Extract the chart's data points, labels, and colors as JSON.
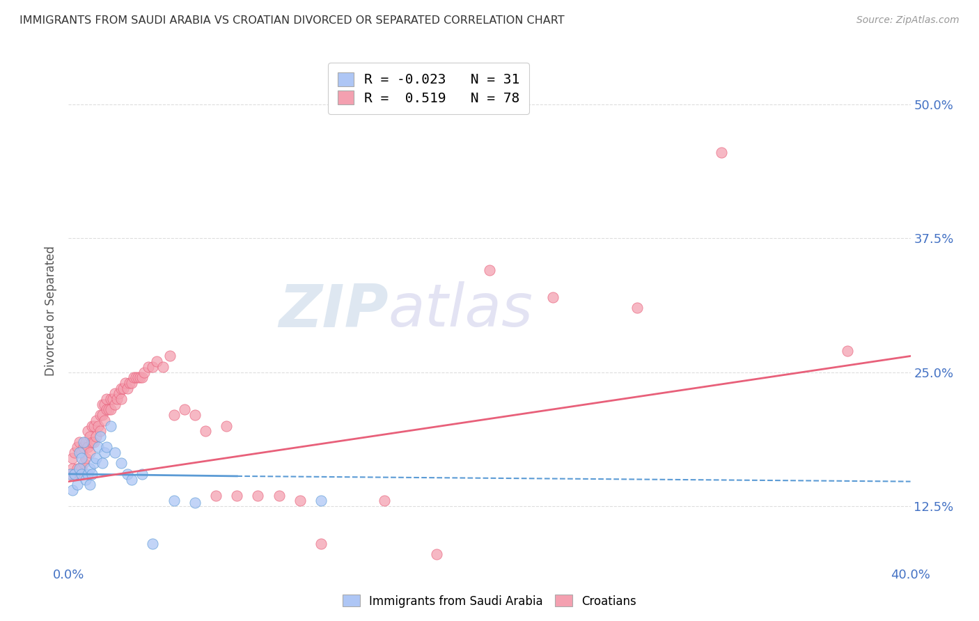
{
  "title": "IMMIGRANTS FROM SAUDI ARABIA VS CROATIAN DIVORCED OR SEPARATED CORRELATION CHART",
  "source": "Source: ZipAtlas.com",
  "ylabel_ticks": [
    0.125,
    0.25,
    0.375,
    0.5
  ],
  "ylabel_labels": [
    "12.5%",
    "25.0%",
    "37.5%",
    "50.0%"
  ],
  "xlim": [
    0.0,
    0.4
  ],
  "ylim": [
    0.07,
    0.545
  ],
  "legend1_label": "R = -0.023   N = 31",
  "legend2_label": "R =  0.519   N = 78",
  "watermark_zip": "ZIP",
  "watermark_atlas": "atlas",
  "series1_color": "#aec6f5",
  "series2_color": "#f4a0b0",
  "trend1_color": "#5b9bd5",
  "trend2_color": "#e8607a",
  "legend_series1": "Immigrants from Saudi Arabia",
  "legend_series2": "Croatians",
  "blue_scatter_x": [
    0.001,
    0.002,
    0.003,
    0.004,
    0.005,
    0.005,
    0.006,
    0.006,
    0.007,
    0.008,
    0.009,
    0.01,
    0.01,
    0.011,
    0.012,
    0.013,
    0.014,
    0.015,
    0.016,
    0.017,
    0.018,
    0.02,
    0.022,
    0.025,
    0.028,
    0.03,
    0.035,
    0.04,
    0.05,
    0.06,
    0.12
  ],
  "blue_scatter_y": [
    0.155,
    0.14,
    0.155,
    0.145,
    0.16,
    0.175,
    0.155,
    0.17,
    0.185,
    0.15,
    0.155,
    0.16,
    0.145,
    0.155,
    0.165,
    0.17,
    0.18,
    0.19,
    0.165,
    0.175,
    0.18,
    0.2,
    0.175,
    0.165,
    0.155,
    0.15,
    0.155,
    0.09,
    0.13,
    0.128,
    0.13
  ],
  "pink_scatter_x": [
    0.001,
    0.002,
    0.002,
    0.003,
    0.003,
    0.004,
    0.004,
    0.005,
    0.005,
    0.006,
    0.006,
    0.007,
    0.007,
    0.008,
    0.008,
    0.009,
    0.009,
    0.01,
    0.01,
    0.011,
    0.011,
    0.012,
    0.012,
    0.013,
    0.013,
    0.014,
    0.015,
    0.015,
    0.016,
    0.016,
    0.017,
    0.017,
    0.018,
    0.018,
    0.019,
    0.02,
    0.02,
    0.021,
    0.022,
    0.022,
    0.023,
    0.024,
    0.025,
    0.025,
    0.026,
    0.027,
    0.028,
    0.029,
    0.03,
    0.031,
    0.032,
    0.033,
    0.034,
    0.035,
    0.036,
    0.038,
    0.04,
    0.042,
    0.045,
    0.048,
    0.05,
    0.055,
    0.06,
    0.065,
    0.07,
    0.075,
    0.08,
    0.09,
    0.1,
    0.11,
    0.12,
    0.15,
    0.175,
    0.2,
    0.23,
    0.27,
    0.31,
    0.37
  ],
  "pink_scatter_y": [
    0.155,
    0.16,
    0.17,
    0.155,
    0.175,
    0.16,
    0.18,
    0.155,
    0.185,
    0.16,
    0.175,
    0.165,
    0.18,
    0.17,
    0.185,
    0.18,
    0.195,
    0.175,
    0.19,
    0.185,
    0.2,
    0.185,
    0.2,
    0.19,
    0.205,
    0.2,
    0.195,
    0.21,
    0.21,
    0.22,
    0.205,
    0.22,
    0.215,
    0.225,
    0.215,
    0.215,
    0.225,
    0.225,
    0.22,
    0.23,
    0.225,
    0.23,
    0.225,
    0.235,
    0.235,
    0.24,
    0.235,
    0.24,
    0.24,
    0.245,
    0.245,
    0.245,
    0.245,
    0.245,
    0.25,
    0.255,
    0.255,
    0.26,
    0.255,
    0.265,
    0.21,
    0.215,
    0.21,
    0.195,
    0.135,
    0.2,
    0.135,
    0.135,
    0.135,
    0.13,
    0.09,
    0.13,
    0.08,
    0.345,
    0.32,
    0.31,
    0.455,
    0.27
  ],
  "trend1_x": [
    0.0,
    0.4
  ],
  "trend1_y": [
    0.155,
    0.148
  ],
  "trend2_x": [
    0.0,
    0.4
  ],
  "trend2_y": [
    0.148,
    0.265
  ],
  "grid_color": "#dddddd",
  "background_color": "#ffffff"
}
